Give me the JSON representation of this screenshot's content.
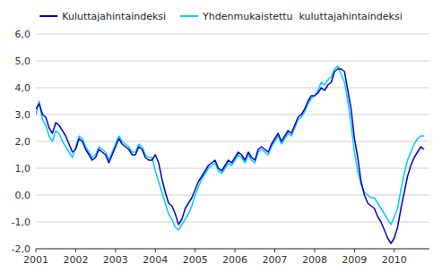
{
  "chart_data": {
    "type": "line",
    "x": [
      2001,
      2001.0833,
      2001.1667,
      2001.25,
      2001.3333,
      2001.4167,
      2001.5,
      2001.5833,
      2001.6667,
      2001.75,
      2001.8333,
      2001.9167,
      2002,
      2002.0833,
      2002.1667,
      2002.25,
      2002.3333,
      2002.4167,
      2002.5,
      2002.5833,
      2002.6667,
      2002.75,
      2002.8333,
      2002.9167,
      2003,
      2003.0833,
      2003.1667,
      2003.25,
      2003.3333,
      2003.4167,
      2003.5,
      2003.5833,
      2003.6667,
      2003.75,
      2003.8333,
      2003.9167,
      2004,
      2004.0833,
      2004.1667,
      2004.25,
      2004.3333,
      2004.4167,
      2004.5,
      2004.5833,
      2004.6667,
      2004.75,
      2004.8333,
      2004.9167,
      2005,
      2005.0833,
      2005.1667,
      2005.25,
      2005.3333,
      2005.4167,
      2005.5,
      2005.5833,
      2005.6667,
      2005.75,
      2005.8333,
      2005.9167,
      2006,
      2006.0833,
      2006.1667,
      2006.25,
      2006.3333,
      2006.4167,
      2006.5,
      2006.5833,
      2006.6667,
      2006.75,
      2006.8333,
      2006.9167,
      2007,
      2007.0833,
      2007.1667,
      2007.25,
      2007.3333,
      2007.4167,
      2007.5,
      2007.5833,
      2007.6667,
      2007.75,
      2007.8333,
      2007.9167,
      2008,
      2008.0833,
      2008.1667,
      2008.25,
      2008.3333,
      2008.4167,
      2008.5,
      2008.5833,
      2008.6667,
      2008.75,
      2008.8333,
      2008.9167,
      2009,
      2009.0833,
      2009.1667,
      2009.25,
      2009.3333,
      2009.4167,
      2009.5,
      2009.5833,
      2009.6667,
      2009.75,
      2009.8333,
      2009.9167,
      2010,
      2010.0833,
      2010.1667,
      2010.25,
      2010.3333,
      2010.4167,
      2010.5,
      2010.5833,
      2010.6667,
      2010.75
    ],
    "series": [
      {
        "name": "Kuluttajahintaindeksi",
        "color": "#0000CD",
        "values": [
          3.2,
          3.4,
          3.0,
          2.9,
          2.5,
          2.3,
          2.7,
          2.6,
          2.4,
          2.2,
          1.9,
          1.6,
          1.7,
          2.1,
          2.0,
          1.7,
          1.5,
          1.3,
          1.4,
          1.7,
          1.6,
          1.5,
          1.2,
          1.5,
          1.8,
          2.1,
          1.9,
          1.8,
          1.7,
          1.5,
          1.5,
          1.8,
          1.7,
          1.4,
          1.3,
          1.3,
          1.5,
          1.2,
          0.6,
          0.1,
          -0.3,
          -0.4,
          -0.7,
          -1.1,
          -0.9,
          -0.5,
          -0.3,
          -0.1,
          0.2,
          0.5,
          0.7,
          0.9,
          1.1,
          1.2,
          1.3,
          1.0,
          0.9,
          1.1,
          1.3,
          1.2,
          1.4,
          1.6,
          1.5,
          1.3,
          1.6,
          1.4,
          1.3,
          1.7,
          1.8,
          1.7,
          1.6,
          1.9,
          2.1,
          2.3,
          2.0,
          2.2,
          2.4,
          2.3,
          2.6,
          2.9,
          3.0,
          3.2,
          3.5,
          3.7,
          3.7,
          3.8,
          4.0,
          3.9,
          4.1,
          4.2,
          4.6,
          4.7,
          4.7,
          4.6,
          3.9,
          3.2,
          2.1,
          1.4,
          0.5,
          0.0,
          -0.3,
          -0.4,
          -0.5,
          -0.8,
          -1.0,
          -1.3,
          -1.6,
          -1.8,
          -1.6,
          -1.2,
          -0.5,
          0.1,
          0.7,
          1.1,
          1.4,
          1.6,
          1.8,
          1.7
        ]
      },
      {
        "name": "Yhdenmukaistettu  kuluttajahintaindeksi",
        "color": "#00CCFF",
        "values": [
          3.0,
          3.5,
          2.8,
          2.6,
          2.2,
          2.0,
          2.4,
          2.3,
          2.0,
          1.8,
          1.6,
          1.4,
          1.8,
          2.2,
          2.1,
          1.8,
          1.6,
          1.4,
          1.5,
          1.8,
          1.7,
          1.6,
          1.3,
          1.6,
          1.9,
          2.2,
          2.0,
          1.9,
          1.8,
          1.6,
          1.6,
          1.9,
          1.8,
          1.5,
          1.4,
          1.4,
          0.9,
          0.5,
          0.1,
          -0.3,
          -0.7,
          -0.9,
          -1.2,
          -1.3,
          -1.1,
          -0.9,
          -0.7,
          -0.4,
          0.0,
          0.3,
          0.6,
          0.8,
          1.0,
          1.1,
          1.2,
          0.9,
          0.8,
          1.0,
          1.2,
          1.1,
          1.3,
          1.5,
          1.4,
          1.2,
          1.5,
          1.3,
          1.2,
          1.6,
          1.7,
          1.6,
          1.5,
          1.8,
          2.0,
          2.2,
          1.9,
          2.1,
          2.3,
          2.2,
          2.5,
          2.8,
          2.9,
          3.1,
          3.4,
          3.6,
          3.7,
          3.9,
          4.2,
          4.1,
          4.3,
          4.4,
          4.7,
          4.8,
          4.5,
          4.2,
          3.5,
          2.6,
          1.6,
          0.9,
          0.4,
          0.1,
          0.0,
          -0.1,
          -0.1,
          -0.3,
          -0.5,
          -0.7,
          -0.9,
          -1.1,
          -0.8,
          -0.5,
          0.2,
          0.8,
          1.3,
          1.6,
          1.9,
          2.1,
          2.2,
          2.2
        ]
      }
    ],
    "xlim": [
      2001,
      2010.8833
    ],
    "xticks": [
      2001,
      2002,
      2003,
      2004,
      2005,
      2006,
      2007,
      2008,
      2009,
      2010
    ],
    "ylim": [
      -2.0,
      6.0
    ],
    "yticks": [
      {
        "value": -2.0,
        "label": "-2,0"
      },
      {
        "value": -1.0,
        "label": "-1,0"
      },
      {
        "value": 0.0,
        "label": "0,0"
      },
      {
        "value": 1.0,
        "label": "1,0"
      },
      {
        "value": 2.0,
        "label": "2,0"
      },
      {
        "value": 3.0,
        "label": "3,0"
      },
      {
        "value": 4.0,
        "label": "4,0"
      },
      {
        "value": 5.0,
        "label": "5,0"
      },
      {
        "value": 6.0,
        "label": "6,0"
      }
    ],
    "grid": true,
    "legend": "top"
  }
}
